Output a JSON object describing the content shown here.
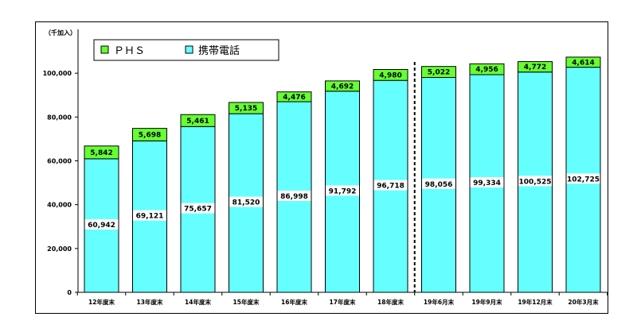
{
  "chart_data": {
    "type": "bar",
    "stacked": true,
    "y_unit_label": "（千加入）",
    "categories": [
      "12年度末",
      "13年度末",
      "14年度末",
      "15年度末",
      "16年度末",
      "17年度末",
      "18年度末",
      "19年6月末",
      "19年9月末",
      "19年12月末",
      "20年3月末"
    ],
    "series": [
      {
        "name": "携帯電話",
        "color": "#66ffff",
        "values": [
          60942,
          69121,
          75657,
          81520,
          86998,
          91792,
          96718,
          98056,
          99334,
          100525,
          102725
        ],
        "labels": [
          "60,942",
          "69,121",
          "75,657",
          "81,520",
          "86,998",
          "91,792",
          "96,718",
          "98,056",
          "99,334",
          "100,525",
          "102,725"
        ]
      },
      {
        "name": "ＰＨＳ",
        "color": "#66ff33",
        "values": [
          5842,
          5698,
          5461,
          5135,
          4476,
          4692,
          4980,
          5022,
          4956,
          4772,
          4614
        ],
        "labels": [
          "5,842",
          "5,698",
          "5,461",
          "5,135",
          "4,476",
          "4,692",
          "4,980",
          "5,022",
          "4,956",
          "4,772",
          "4,614"
        ]
      }
    ],
    "ylim": [
      0,
      120000
    ],
    "yticks": [
      0,
      20000,
      40000,
      60000,
      80000,
      100000
    ],
    "ytick_labels": [
      "0",
      "20,000",
      "40,000",
      "60,000",
      "80,000",
      "100,000"
    ],
    "gridlines": false,
    "divider_after_category": "18年度末",
    "legend_placement": "top-left",
    "legend_order": [
      "ＰＨＳ",
      "携帯電話"
    ]
  }
}
